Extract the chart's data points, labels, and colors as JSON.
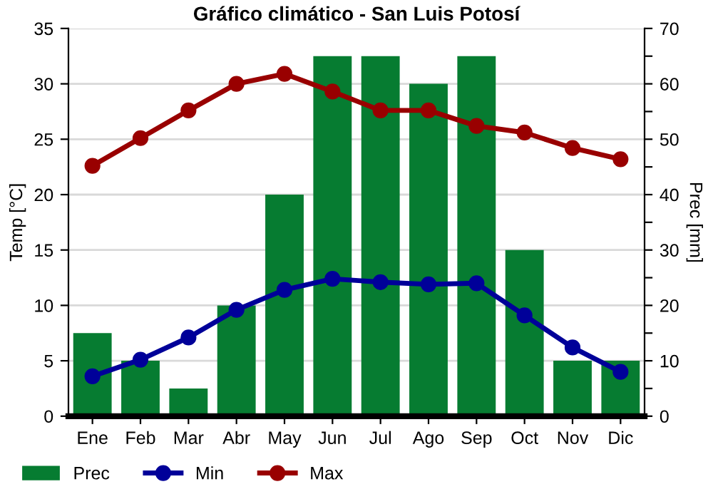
{
  "chart_data": {
    "type": "bar",
    "title": "Gráfico climático - San Luis Potosí",
    "ylabel": "Temp [°C]",
    "y2label": "Prec [mm]",
    "categories": [
      "Ene",
      "Feb",
      "Mar",
      "Abr",
      "May",
      "Jun",
      "Jul",
      "Ago",
      "Sep",
      "Oct",
      "Nov",
      "Dic"
    ],
    "series": [
      {
        "name": "Prec",
        "axis": "y2",
        "color": "#067c31",
        "values": [
          15,
          10,
          5,
          20,
          40,
          65,
          65,
          60,
          65,
          30,
          10,
          10
        ]
      },
      {
        "name": "Min",
        "type": "line",
        "axis": "y",
        "color": "#000099",
        "marker": "circle",
        "values": [
          3.6,
          5.1,
          7.1,
          9.6,
          11.4,
          12.4,
          12.1,
          11.9,
          12.0,
          9.1,
          6.2,
          4.0
        ]
      },
      {
        "name": "Max",
        "type": "line",
        "axis": "y",
        "color": "#990000",
        "marker": "circle",
        "values": [
          22.6,
          25.1,
          27.6,
          30.0,
          30.9,
          29.3,
          27.6,
          27.6,
          26.2,
          25.6,
          24.2,
          23.2
        ]
      }
    ],
    "ylim": [
      0,
      35
    ],
    "yticks": [
      0,
      5,
      10,
      15,
      20,
      25,
      30,
      35
    ],
    "y2lim": [
      0,
      70
    ],
    "y2ticks": [
      0,
      {
        "value": 5,
        "label": null
      },
      10,
      {
        "value": 15,
        "label": null
      },
      20,
      {
        "value": 25,
        "label": null
      },
      30,
      {
        "value": 35,
        "label": null
      },
      40,
      {
        "value": 45,
        "label": null
      },
      50,
      {
        "value": 55,
        "label": null
      },
      60,
      {
        "value": 65,
        "label": null
      },
      70
    ],
    "grid": true,
    "legend": "bottom left"
  }
}
